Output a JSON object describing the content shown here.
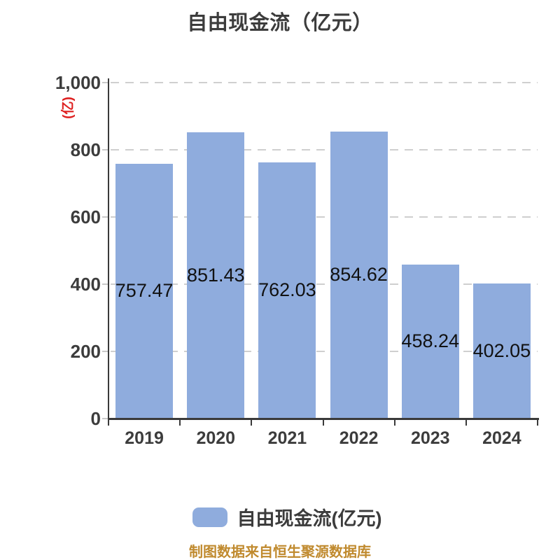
{
  "title": "自由现金流（亿元）",
  "y_axis": {
    "unit_label": "(亿)",
    "unit_color": "#de2020",
    "tick_labels": [
      "0",
      "200",
      "400",
      "600",
      "800",
      "1,000"
    ]
  },
  "legend": {
    "label": "自由现金流(亿元)",
    "swatch_color": "#8FACDD"
  },
  "footer": {
    "source_note": "制图数据来自恒生聚源数据库",
    "color": "#c08a2e"
  },
  "colors": {
    "bar": "#8FACDD",
    "axis": "#3a3a3a",
    "gridline": "#cfcfcf",
    "title_text": "#3c3c3c",
    "value_label_text": "#111111"
  },
  "chart_data": {
    "type": "bar",
    "title": "自由现金流（亿元）",
    "categories": [
      "2019",
      "2020",
      "2021",
      "2022",
      "2023",
      "2024"
    ],
    "values": [
      757.47,
      851.43,
      762.03,
      854.62,
      458.24,
      402.05
    ],
    "value_labels": [
      "757.47",
      "851.43",
      "762.03",
      "854.62",
      "458.24",
      "402.05"
    ],
    "series_name": "自由现金流(亿元)",
    "ylabel": "(亿)",
    "ylim": [
      0,
      1000
    ],
    "yticks": [
      0,
      200,
      400,
      600,
      800,
      1000
    ],
    "ytick_labels": [
      "0",
      "200",
      "400",
      "600",
      "800",
      "1,000"
    ],
    "grid": "horizontal-dashed",
    "legend_position": "bottom",
    "bar_color": "#8FACDD"
  }
}
